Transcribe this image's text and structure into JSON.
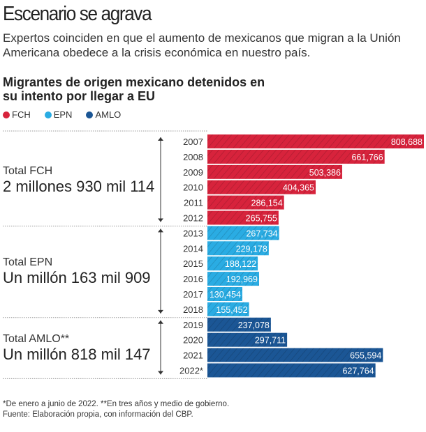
{
  "header": {
    "title": "Escenario se agrava",
    "subtitle": "Expertos coinciden en que el aumento de mexicanos que migran a la Unión Americana obedece a la crisis económica en nuestro país."
  },
  "chart_data": {
    "type": "bar",
    "orientation": "horizontal",
    "title": "Migrantes de origen mexicano detenidos en su intento por llegar a EU",
    "categories": [
      "2007",
      "2008",
      "2009",
      "2010",
      "2011",
      "2012",
      "2013",
      "2014",
      "2015",
      "2016",
      "2017",
      "2018",
      "2019",
      "2020",
      "2021",
      "2022*"
    ],
    "values": [
      808688,
      661766,
      503386,
      404365,
      286154,
      265755,
      267734,
      229178,
      188122,
      192969,
      130454,
      155452,
      237078,
      297711,
      655594,
      627764
    ],
    "value_labels": [
      "808,688",
      "661,766",
      "503,386",
      "404,365",
      "286,154",
      "265,755",
      "267,734",
      "229,178",
      "188,122",
      "192,969",
      "130,454",
      "155,452",
      "237,078",
      "297,711",
      "655,594",
      "627,764"
    ],
    "groups": [
      "FCH",
      "FCH",
      "FCH",
      "FCH",
      "FCH",
      "FCH",
      "EPN",
      "EPN",
      "EPN",
      "EPN",
      "EPN",
      "EPN",
      "AMLO",
      "AMLO",
      "AMLO",
      "AMLO"
    ],
    "legend": [
      {
        "name": "FCH",
        "color": "#d7233c"
      },
      {
        "name": "EPN",
        "color": "#2aace3"
      },
      {
        "name": "AMLO",
        "color": "#1b5695"
      }
    ],
    "legend_placement": "top-left",
    "totals": [
      {
        "label": "Total FCH",
        "value": "2 millones 930 mil 114"
      },
      {
        "label": "Total EPN",
        "value": "Un millón 163 mil 909"
      },
      {
        "label": "Total AMLO**",
        "value": "Un millón 818 mil 147"
      }
    ]
  },
  "footer": {
    "note": "*De enero a junio de 2022. **En tres años y medio de gobierno.",
    "source": "Fuente: Elaboración propia, con información del CBP."
  }
}
